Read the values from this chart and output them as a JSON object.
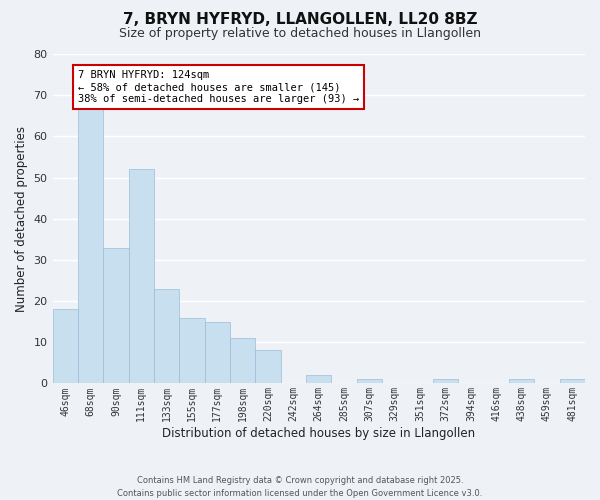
{
  "title": "7, BRYN HYFRYD, LLANGOLLEN, LL20 8BZ",
  "subtitle": "Size of property relative to detached houses in Llangollen",
  "xlabel": "Distribution of detached houses by size in Llangollen",
  "ylabel": "Number of detached properties",
  "bar_color": "#c8dff0",
  "bar_edge_color": "#9bbdd6",
  "categories": [
    "46sqm",
    "68sqm",
    "90sqm",
    "111sqm",
    "133sqm",
    "155sqm",
    "177sqm",
    "198sqm",
    "220sqm",
    "242sqm",
    "264sqm",
    "285sqm",
    "307sqm",
    "329sqm",
    "351sqm",
    "372sqm",
    "394sqm",
    "416sqm",
    "438sqm",
    "459sqm",
    "481sqm"
  ],
  "values": [
    18,
    67,
    33,
    52,
    23,
    16,
    15,
    11,
    8,
    0,
    2,
    0,
    1,
    0,
    0,
    1,
    0,
    0,
    1,
    0,
    1
  ],
  "ylim": [
    0,
    80
  ],
  "yticks": [
    0,
    10,
    20,
    30,
    40,
    50,
    60,
    70,
    80
  ],
  "annotation_text": "7 BRYN HYFRYD: 124sqm\n← 58% of detached houses are smaller (145)\n38% of semi-detached houses are larger (93) →",
  "annotation_box_color": "#ffffff",
  "annotation_box_edgecolor": "#cc0000",
  "footer_line1": "Contains HM Land Registry data © Crown copyright and database right 2025.",
  "footer_line2": "Contains public sector information licensed under the Open Government Licence v3.0.",
  "background_color": "#eef2f7",
  "grid_color": "#ffffff",
  "title_fontsize": 11,
  "subtitle_fontsize": 9
}
